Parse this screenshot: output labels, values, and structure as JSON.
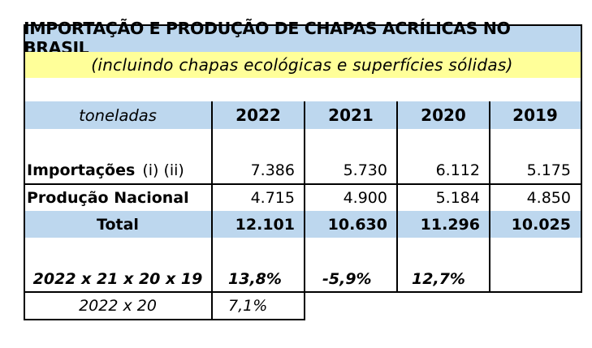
{
  "title": "IMPORTAÇÃO E PRODUÇÃO DE CHAPAS ACRÍLICAS NO BRASIL",
  "subtitle": "(incluindo chapas ecológicas e superfícies sólidas)",
  "header": {
    "unit": "toneladas",
    "years": [
      "2022",
      "2021",
      "2020",
      "2019"
    ]
  },
  "rows": {
    "imports": {
      "label": "Importações",
      "note": "(i) (ii)",
      "values": [
        "7.386",
        "5.730",
        "6.112",
        "5.175"
      ]
    },
    "national": {
      "label": "Produção Nacional",
      "values": [
        "4.715",
        "4.900",
        "5.184",
        "4.850"
      ]
    },
    "total": {
      "label": "Total",
      "values": [
        "12.101",
        "10.630",
        "11.296",
        "10.025"
      ]
    }
  },
  "growth": {
    "label": "2022 x 21 x 20 x 19",
    "values": [
      "13,8%",
      "-5,9%",
      "12,7%"
    ]
  },
  "growth2": {
    "label": "2022 x 20",
    "value": "7,1%"
  }
}
